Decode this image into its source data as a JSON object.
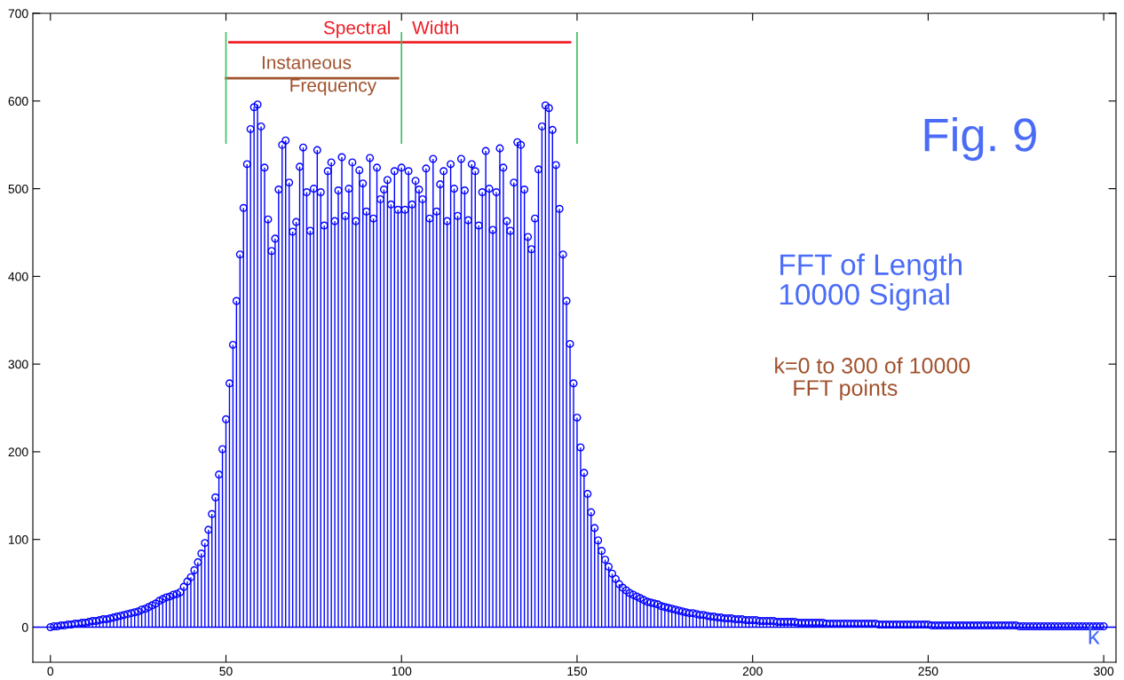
{
  "chart_data": {
    "type": "lollipop",
    "xlabel": "k",
    "x": [
      0,
      1,
      2,
      3,
      4,
      5,
      6,
      7,
      8,
      9,
      10,
      11,
      12,
      13,
      14,
      15,
      16,
      17,
      18,
      19,
      20,
      21,
      22,
      23,
      24,
      25,
      26,
      27,
      28,
      29,
      30,
      31,
      32,
      33,
      34,
      35,
      36,
      37,
      38,
      39,
      40,
      41,
      42,
      43,
      44,
      45,
      46,
      47,
      48,
      49,
      50,
      51,
      52,
      53,
      54,
      55,
      56,
      57,
      58,
      59,
      60,
      61,
      62,
      63,
      64,
      65,
      66,
      67,
      68,
      69,
      70,
      71,
      72,
      73,
      74,
      75,
      76,
      77,
      78,
      79,
      80,
      81,
      82,
      83,
      84,
      85,
      86,
      87,
      88,
      89,
      90,
      91,
      92,
      93,
      94,
      95,
      96,
      97,
      98,
      99,
      100,
      101,
      102,
      103,
      104,
      105,
      106,
      107,
      108,
      109,
      110,
      111,
      112,
      113,
      114,
      115,
      116,
      117,
      118,
      119,
      120,
      121,
      122,
      123,
      124,
      125,
      126,
      127,
      128,
      129,
      130,
      131,
      132,
      133,
      134,
      135,
      136,
      137,
      138,
      139,
      140,
      141,
      142,
      143,
      144,
      145,
      146,
      147,
      148,
      149,
      150,
      151,
      152,
      153,
      154,
      155,
      156,
      157,
      158,
      159,
      160,
      161,
      162,
      163,
      164,
      165,
      166,
      167,
      168,
      169,
      170,
      171,
      172,
      173,
      174,
      175,
      176,
      177,
      178,
      179,
      180,
      181,
      182,
      183,
      184,
      185,
      186,
      187,
      188,
      189,
      190,
      191,
      192,
      193,
      194,
      195,
      196,
      197,
      198,
      199,
      200,
      201,
      202,
      203,
      204,
      205,
      206,
      207,
      208,
      209,
      210,
      211,
      212,
      213,
      214,
      215,
      216,
      217,
      218,
      219,
      220,
      221,
      222,
      223,
      224,
      225,
      226,
      227,
      228,
      229,
      230,
      231,
      232,
      233,
      234,
      235,
      236,
      237,
      238,
      239,
      240,
      241,
      242,
      243,
      244,
      245,
      246,
      247,
      248,
      249,
      250,
      251,
      252,
      253,
      254,
      255,
      256,
      257,
      258,
      259,
      260,
      261,
      262,
      263,
      264,
      265,
      266,
      267,
      268,
      269,
      270,
      271,
      272,
      273,
      274,
      275,
      276,
      277,
      278,
      279,
      280,
      281,
      282,
      283,
      284,
      285,
      286,
      287,
      288,
      289,
      290,
      291,
      292,
      293,
      294,
      295,
      296,
      297,
      298,
      299,
      300
    ],
    "series": [
      {
        "color": "#0000ff",
        "values": [
          0,
          1,
          1,
          2,
          2,
          3,
          3,
          4,
          4,
          5,
          5,
          6,
          7,
          7,
          8,
          9,
          9,
          10,
          11,
          12,
          13,
          14,
          15,
          16,
          17,
          18,
          20,
          21,
          23,
          25,
          27,
          30,
          32,
          34,
          35,
          37,
          38,
          40,
          46,
          52,
          57,
          65,
          74,
          84,
          96,
          111,
          129,
          148,
          174,
          203,
          237,
          278,
          322,
          372,
          425,
          478,
          528,
          568,
          593,
          596,
          571,
          524,
          465,
          429,
          443,
          499,
          550,
          555,
          507,
          451,
          462,
          525,
          547,
          496,
          452,
          500,
          544,
          496,
          458,
          520,
          530,
          463,
          498,
          536,
          469,
          500,
          530,
          463,
          521,
          506,
          474,
          535,
          466,
          524,
          488,
          499,
          510,
          482,
          520,
          476,
          524,
          476,
          520,
          482,
          509,
          499,
          488,
          523,
          466,
          534,
          474,
          505,
          520,
          463,
          528,
          500,
          469,
          534,
          498,
          464,
          528,
          520,
          458,
          496,
          543,
          500,
          453,
          496,
          546,
          524,
          463,
          452,
          507,
          553,
          550,
          499,
          445,
          431,
          466,
          522,
          571,
          595,
          592,
          567,
          527,
          477,
          425,
          372,
          323,
          278,
          239,
          205,
          176,
          152,
          131,
          113,
          99,
          87,
          77,
          69,
          61,
          55,
          49,
          45,
          42,
          39,
          37,
          35,
          33,
          31,
          29,
          28,
          27,
          26,
          24,
          23,
          22,
          21,
          20,
          19,
          18,
          17,
          16,
          16,
          15,
          14,
          14,
          13,
          12,
          12,
          11,
          11,
          10,
          10,
          10,
          9,
          9,
          9,
          8,
          8,
          8,
          8,
          7,
          7,
          7,
          7,
          7,
          6,
          6,
          6,
          6,
          6,
          6,
          5,
          5,
          5,
          5,
          5,
          5,
          5,
          5,
          4,
          4,
          4,
          4,
          4,
          4,
          4,
          4,
          4,
          4,
          4,
          4,
          4,
          4,
          4,
          3,
          3,
          3,
          3,
          3,
          3,
          3,
          3,
          3,
          3,
          3,
          3,
          3,
          3,
          3,
          2,
          2,
          2,
          2,
          2,
          2,
          2,
          2,
          2,
          2,
          2,
          2,
          2,
          2,
          2,
          2,
          2,
          2,
          2,
          2,
          2,
          2,
          2,
          2,
          2,
          1,
          1,
          1,
          1,
          1,
          1,
          1,
          1,
          1,
          1,
          1,
          1,
          1,
          1,
          1,
          1,
          1,
          1,
          1,
          1,
          1,
          1,
          1,
          1,
          1
        ]
      },
      {
        "type": "line",
        "color": "#ee1c24",
        "marker": "none",
        "x": [
          51,
          148
        ],
        "values": [
          667,
          667
        ]
      },
      {
        "type": "line",
        "color": "#a0522d",
        "marker": "none",
        "x": [
          50,
          99
        ],
        "values": [
          626,
          626
        ]
      }
    ],
    "marker": "circle",
    "xlim": [
      -5,
      303.5
    ],
    "ylim": [
      -40,
      700
    ],
    "xticks": [
      0,
      50,
      100,
      150,
      200,
      250,
      300
    ],
    "yticks": [
      0,
      100,
      200,
      300,
      400,
      500,
      600,
      700
    ],
    "ref_lines": [
      {
        "axis": "y",
        "value": 0,
        "color": "#0000ff"
      },
      {
        "axis": "x",
        "value": 50,
        "color": "#3cc060"
      },
      {
        "axis": "x",
        "value": 100,
        "color": "#3cc060"
      },
      {
        "axis": "x",
        "value": 150,
        "color": "#3cc060"
      }
    ],
    "annotations": [
      {
        "text": "Spectral",
        "x": 97,
        "y": 672
      },
      {
        "text": "Width",
        "x": 103,
        "y": 672
      },
      "Instaneous",
      "Frequency",
      "Fig. 9",
      "FFT of Length\n10000 Signal",
      "k=0 to 300 of 10000\n   FFT points"
    ]
  }
}
